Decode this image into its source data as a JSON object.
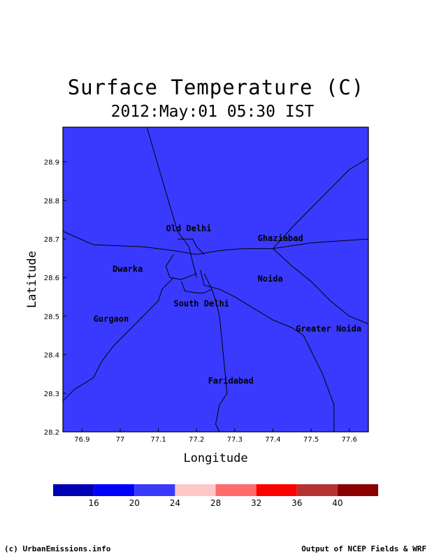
{
  "title": "Surface Temperature (C)",
  "subtitle": "2012:May:01 05:30 IST",
  "map": {
    "field_color": "#3a3aff",
    "x_label": "Longitude",
    "y_label": "Latitude",
    "lon_range": [
      76.85,
      77.65
    ],
    "lat_range": [
      28.2,
      28.99
    ],
    "x_ticks": [
      {
        "value": 76.9,
        "label": "76.9"
      },
      {
        "value": 77.0,
        "label": "77"
      },
      {
        "value": 77.1,
        "label": "77.1"
      },
      {
        "value": 77.2,
        "label": "77.2"
      },
      {
        "value": 77.3,
        "label": "77.3"
      },
      {
        "value": 77.4,
        "label": "77.4"
      },
      {
        "value": 77.5,
        "label": "77.5"
      },
      {
        "value": 77.6,
        "label": "77.6"
      }
    ],
    "y_ticks": [
      {
        "value": 28.2,
        "label": "28.2"
      },
      {
        "value": 28.3,
        "label": "28.3"
      },
      {
        "value": 28.4,
        "label": "28.4"
      },
      {
        "value": 28.5,
        "label": "28.5"
      },
      {
        "value": 28.6,
        "label": "28.6"
      },
      {
        "value": 28.7,
        "label": "28.7"
      },
      {
        "value": 28.8,
        "label": "28.8"
      },
      {
        "value": 28.9,
        "label": "28.9"
      }
    ],
    "cities": [
      {
        "name": "Old Delhi",
        "lon": 77.12,
        "lat": 28.72
      },
      {
        "name": "Ghaziabad",
        "lon": 77.36,
        "lat": 28.695
      },
      {
        "name": "Dwarka",
        "lon": 76.98,
        "lat": 28.615
      },
      {
        "name": "Noida",
        "lon": 77.36,
        "lat": 28.59
      },
      {
        "name": "South Delhi",
        "lon": 77.14,
        "lat": 28.525
      },
      {
        "name": "Gurgaon",
        "lon": 76.93,
        "lat": 28.485
      },
      {
        "name": "Greater Noida",
        "lon": 77.46,
        "lat": 28.46
      },
      {
        "name": "Faridabad",
        "lon": 77.23,
        "lat": 28.325
      }
    ],
    "roads": [
      [
        [
          77.07,
          28.99
        ],
        [
          77.12,
          28.82
        ],
        [
          77.15,
          28.72
        ],
        [
          77.18,
          28.68
        ],
        [
          77.19,
          28.64
        ],
        [
          77.2,
          28.6
        ]
      ],
      [
        [
          76.85,
          28.72
        ],
        [
          76.93,
          28.685
        ],
        [
          77.06,
          28.68
        ],
        [
          77.14,
          28.67
        ],
        [
          77.2,
          28.66
        ]
      ],
      [
        [
          77.15,
          28.7
        ],
        [
          77.19,
          28.7
        ],
        [
          77.2,
          28.68
        ],
        [
          77.22,
          28.66
        ]
      ],
      [
        [
          77.14,
          28.66
        ],
        [
          77.12,
          28.63
        ],
        [
          77.13,
          28.6
        ],
        [
          77.16,
          28.595
        ],
        [
          77.2,
          28.61
        ]
      ],
      [
        [
          77.14,
          28.6
        ],
        [
          77.11,
          28.57
        ],
        [
          77.1,
          28.54
        ],
        [
          77.06,
          28.5
        ],
        [
          77.03,
          28.47
        ],
        [
          77.0,
          28.44
        ],
        [
          76.98,
          28.42
        ],
        [
          76.95,
          28.38
        ],
        [
          76.93,
          28.34
        ],
        [
          76.88,
          28.31
        ],
        [
          76.85,
          28.28
        ]
      ],
      [
        [
          77.16,
          28.59
        ],
        [
          77.17,
          28.565
        ],
        [
          77.2,
          28.56
        ],
        [
          77.22,
          28.56
        ],
        [
          77.24,
          28.57
        ]
      ],
      [
        [
          77.22,
          28.61
        ],
        [
          77.24,
          28.57
        ],
        [
          77.25,
          28.54
        ],
        [
          77.26,
          28.5
        ],
        [
          77.27,
          28.4
        ],
        [
          77.28,
          28.3
        ],
        [
          77.26,
          28.27
        ],
        [
          77.25,
          28.22
        ],
        [
          77.26,
          28.2
        ]
      ],
      [
        [
          77.21,
          28.62
        ],
        [
          77.22,
          28.58
        ],
        [
          77.26,
          28.57
        ],
        [
          77.3,
          28.55
        ],
        [
          77.35,
          28.52
        ],
        [
          77.4,
          28.49
        ],
        [
          77.45,
          28.47
        ],
        [
          77.48,
          28.45
        ],
        [
          77.5,
          28.41
        ],
        [
          77.53,
          28.35
        ],
        [
          77.56,
          28.27
        ],
        [
          77.56,
          28.2
        ]
      ],
      [
        [
          77.2,
          28.66
        ],
        [
          77.26,
          28.67
        ],
        [
          77.32,
          28.675
        ],
        [
          77.4,
          28.675
        ],
        [
          77.5,
          28.69
        ],
        [
          77.65,
          28.7
        ]
      ],
      [
        [
          77.4,
          28.675
        ],
        [
          77.45,
          28.73
        ],
        [
          77.5,
          28.78
        ],
        [
          77.55,
          28.83
        ],
        [
          77.6,
          28.88
        ],
        [
          77.65,
          28.91
        ]
      ],
      [
        [
          77.4,
          28.675
        ],
        [
          77.45,
          28.63
        ],
        [
          77.5,
          28.59
        ],
        [
          77.55,
          28.54
        ],
        [
          77.6,
          28.5
        ],
        [
          77.65,
          28.48
        ]
      ]
    ]
  },
  "colorbar": {
    "colors": [
      "#0000b4",
      "#0000ff",
      "#3a3aff",
      "#ffc8c8",
      "#ff6a6a",
      "#ff0000",
      "#b43232",
      "#8b0000"
    ],
    "tick_labels": [
      "16",
      "20",
      "24",
      "28",
      "32",
      "36",
      "40"
    ]
  },
  "credits": {
    "left": "(c) UrbanEmissions.info",
    "right": "Output of NCEP Fields & WRF"
  }
}
